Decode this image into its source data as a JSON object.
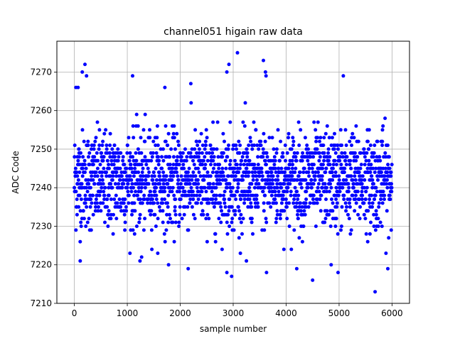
{
  "chart_data": {
    "type": "scatter",
    "title": "channel051 higain raw data",
    "xlabel": "sample number",
    "ylabel": "ADC Code",
    "xlim": [
      -330,
      6330
    ],
    "ylim": [
      7210,
      7278
    ],
    "xticks": [
      0,
      1000,
      2000,
      3000,
      4000,
      5000,
      6000
    ],
    "yticks": [
      7210,
      7220,
      7230,
      7240,
      7250,
      7260,
      7270
    ],
    "grid": true,
    "marker_color": "#0000ff",
    "n_samples": 6000,
    "band": {
      "center": 7242,
      "core_low": 7232,
      "core_high": 7254
    },
    "outliers": [
      {
        "x": 30,
        "y": 7266
      },
      {
        "x": 70,
        "y": 7266
      },
      {
        "x": 150,
        "y": 7270
      },
      {
        "x": 200,
        "y": 7272
      },
      {
        "x": 230,
        "y": 7269
      },
      {
        "x": 1100,
        "y": 7269
      },
      {
        "x": 1710,
        "y": 7266
      },
      {
        "x": 2200,
        "y": 7267
      },
      {
        "x": 2880,
        "y": 7270
      },
      {
        "x": 2920,
        "y": 7272
      },
      {
        "x": 3080,
        "y": 7275
      },
      {
        "x": 3570,
        "y": 7273
      },
      {
        "x": 3610,
        "y": 7270
      },
      {
        "x": 3620,
        "y": 7269
      },
      {
        "x": 5080,
        "y": 7269
      },
      {
        "x": 110,
        "y": 7221
      },
      {
        "x": 1240,
        "y": 7221
      },
      {
        "x": 1270,
        "y": 7222
      },
      {
        "x": 1780,
        "y": 7220
      },
      {
        "x": 2150,
        "y": 7219
      },
      {
        "x": 2880,
        "y": 7218
      },
      {
        "x": 2970,
        "y": 7217
      },
      {
        "x": 3630,
        "y": 7218
      },
      {
        "x": 4200,
        "y": 7219
      },
      {
        "x": 4500,
        "y": 7216
      },
      {
        "x": 4980,
        "y": 7218
      },
      {
        "x": 5680,
        "y": 7213
      },
      {
        "x": 5920,
        "y": 7219
      },
      {
        "x": 3250,
        "y": 7221
      },
      {
        "x": 4850,
        "y": 7220
      }
    ]
  }
}
